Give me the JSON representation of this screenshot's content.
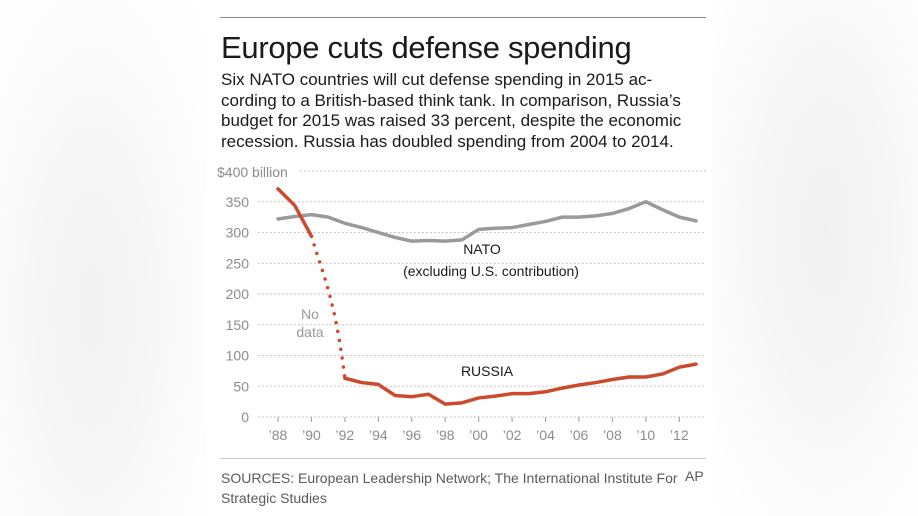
{
  "header": {
    "title": "Europe cuts defense spending",
    "subtitle_lines": [
      "Six NATO countries will cut defense spending in 2015 ac-",
      "cording to a British-based think tank. In comparison, Russia’s",
      "budget for 2015 was raised 33 percent, despite the economic",
      "recession. Russia has doubled spending from 2004 to 2014."
    ]
  },
  "chart_data": {
    "type": "line",
    "title": "Europe cuts defense spending",
    "ylabel_top": "$400 billion",
    "ylim": [
      0,
      400
    ],
    "yticks": [
      0,
      50,
      100,
      150,
      200,
      250,
      300,
      350
    ],
    "xlim": [
      1988,
      2013
    ],
    "x_tick_years": [
      1988,
      1990,
      1992,
      1994,
      1996,
      1998,
      2000,
      2002,
      2004,
      2006,
      2008,
      2010,
      2012
    ],
    "x_tick_labels": [
      "’88",
      "’90",
      "’92",
      "’94",
      "’96",
      "’98",
      "’00",
      "’02",
      "’04",
      "’06",
      "’08",
      "’10",
      "’12"
    ],
    "grid": true,
    "series": [
      {
        "name": "NATO",
        "label": "NATO",
        "sublabel": "(excluding U.S. contribution)",
        "color": "#9a9a9a",
        "x": [
          1988,
          1989,
          1990,
          1991,
          1992,
          1993,
          1994,
          1995,
          1996,
          1997,
          1998,
          1999,
          2000,
          2001,
          2002,
          2003,
          2004,
          2005,
          2006,
          2007,
          2008,
          2009,
          2010,
          2011,
          2012,
          2013
        ],
        "values": [
          322,
          326,
          329,
          325,
          315,
          308,
          300,
          292,
          286,
          287,
          286,
          288,
          305,
          307,
          308,
          313,
          318,
          325,
          325,
          327,
          331,
          339,
          350,
          337,
          325,
          319
        ]
      },
      {
        "name": "Russia",
        "label": "RUSSIA",
        "color": "#cc4a2b",
        "x": [
          1988,
          1989,
          1990,
          1992,
          1993,
          1994,
          1995,
          1996,
          1997,
          1998,
          1999,
          2000,
          2001,
          2002,
          2003,
          2004,
          2005,
          2006,
          2007,
          2008,
          2009,
          2010,
          2011,
          2012,
          2013
        ],
        "values": [
          371,
          344,
          294,
          63,
          56,
          53,
          35,
          33,
          37,
          21,
          23,
          31,
          34,
          38,
          38,
          41,
          47,
          52,
          56,
          61,
          65,
          65,
          70,
          81,
          86
        ],
        "gap": {
          "from": 1990,
          "to": 1992,
          "label_lines": [
            "No",
            "data"
          ]
        }
      }
    ]
  },
  "footer": {
    "sources": "SOURCES: European Leadership Network; The International Institute For Strategic Studies",
    "credit": "AP"
  }
}
